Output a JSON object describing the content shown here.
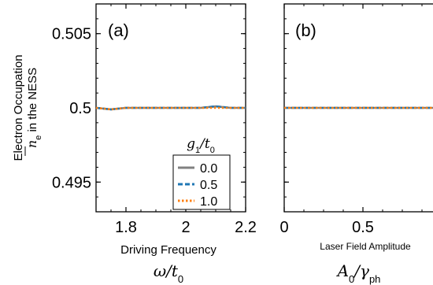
{
  "chart_data": [
    {
      "type": "line",
      "panel_tag": "(a)",
      "title": "",
      "ylabel": "Electron Occupation",
      "ylabel_line2_prefix": "n",
      "ylabel_line2_sub": "e",
      "ylabel_line2_suffix": " in the NESS",
      "xlabel": "Driving Frequency",
      "xlabel_math_main": "ω/t",
      "xlabel_math_sub": "0",
      "xlim": [
        1.7,
        2.2
      ],
      "ylim": [
        0.493,
        0.507
      ],
      "xticks": [
        1.8,
        2.0,
        2.2
      ],
      "xtick_labels": [
        "1.8",
        "2",
        "2.2"
      ],
      "yticks": [
        0.495,
        0.5,
        0.505
      ],
      "ytick_labels": [
        "0.495",
        "0.5",
        "0.505"
      ],
      "legend": {
        "title_main": "g",
        "title_sub": "1",
        "title_sep": "/t",
        "title_sub2": "0",
        "placement": "lower-right"
      },
      "x": [
        1.7,
        1.75,
        1.8,
        1.85,
        1.9,
        1.95,
        2.0,
        2.05,
        2.1,
        2.15,
        2.2
      ],
      "series": [
        {
          "name": "0.0",
          "color": "#808080",
          "dash": "solid",
          "values": [
            0.5,
            0.4999,
            0.5,
            0.5,
            0.5,
            0.5,
            0.5,
            0.5,
            0.5001,
            0.5,
            0.5
          ]
        },
        {
          "name": "0.5",
          "color": "#1f77b4",
          "dash": "dashed",
          "values": [
            0.5,
            0.4999,
            0.5,
            0.5,
            0.5,
            0.5,
            0.5,
            0.5,
            0.5001,
            0.5,
            0.5
          ]
        },
        {
          "name": "1.0",
          "color": "#ff7f0e",
          "dash": "dotted",
          "values": [
            0.5,
            0.4999,
            0.5,
            0.5,
            0.5,
            0.5,
            0.5,
            0.5,
            0.5,
            0.5,
            0.5
          ]
        }
      ]
    },
    {
      "type": "line",
      "panel_tag": "(b)",
      "title": "",
      "xlabel": "Laser Field Amplitude",
      "xlabel_math_main": "A",
      "xlabel_math_sub": "0",
      "xlabel_math_sep": "/γ",
      "xlabel_math_sub2": "ph",
      "xlim": [
        0,
        1
      ],
      "ylim": [
        0.493,
        0.507
      ],
      "xticks": [
        0,
        0.5,
        1
      ],
      "xtick_labels": [
        "0",
        "0.5",
        "1"
      ],
      "x": [
        0,
        0.1,
        0.2,
        0.3,
        0.4,
        0.5,
        0.6,
        0.7,
        0.8,
        0.9,
        1.0
      ],
      "series": [
        {
          "name": "0.0",
          "color": "#808080",
          "dash": "solid",
          "values": [
            0.5,
            0.5,
            0.5,
            0.5,
            0.5,
            0.5,
            0.5,
            0.5,
            0.5,
            0.5,
            0.5
          ]
        },
        {
          "name": "0.5",
          "color": "#1f77b4",
          "dash": "dashed",
          "values": [
            0.5,
            0.5,
            0.5,
            0.5,
            0.5,
            0.5,
            0.5,
            0.5,
            0.5,
            0.5,
            0.5
          ]
        },
        {
          "name": "1.0",
          "color": "#ff7f0e",
          "dash": "dotted",
          "values": [
            0.5,
            0.5,
            0.5,
            0.5,
            0.5,
            0.5,
            0.5,
            0.5,
            0.5,
            0.5,
            0.5
          ]
        }
      ]
    }
  ]
}
